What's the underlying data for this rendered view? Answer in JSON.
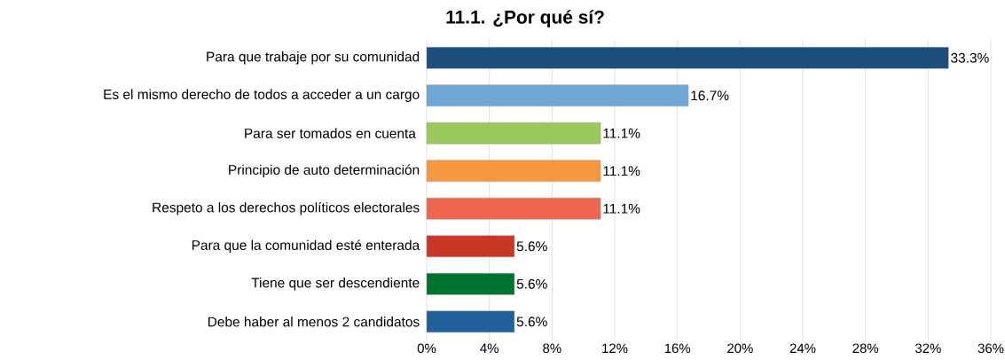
{
  "chart_data": {
    "type": "bar",
    "orientation": "horizontal",
    "title": "11.1. ¿Por qué sí?",
    "categories": [
      "Para que trabaje por su comunidad",
      "Es el mismo derecho de todos a acceder a un cargo",
      "Para ser tomados en cuenta ",
      "Principio de auto determinación",
      "Respeto a los derechos políticos electorales",
      "Para que la comunidad esté enterada",
      "Tiene que ser descendiente",
      "Debe haber al menos 2 candidatos"
    ],
    "values": [
      33.3,
      16.7,
      11.1,
      11.1,
      11.1,
      5.6,
      5.6,
      5.6
    ],
    "value_labels": [
      "33.3%",
      "16.7%",
      "11.1%",
      "11.1%",
      "11.1%",
      "5.6%",
      "5.6%",
      "5.6%"
    ],
    "colors": [
      "#1c4f7c",
      "#6fa8d6",
      "#9bc85a",
      "#f5973f",
      "#ef6650",
      "#cb3727",
      "#00742f",
      "#21609a"
    ],
    "xlim": [
      0,
      36
    ],
    "xticks": [
      {
        "value": 0,
        "label": "0%"
      },
      {
        "value": 4,
        "label": "4%"
      },
      {
        "value": 8,
        "label": "8%"
      },
      {
        "value": 12,
        "label": "12%"
      },
      {
        "value": 16,
        "label": "16%"
      },
      {
        "value": 20,
        "label": "20%"
      },
      {
        "value": 24,
        "label": "24%"
      },
      {
        "value": 28,
        "label": "28%"
      },
      {
        "value": 32,
        "label": "32%"
      },
      {
        "value": 36,
        "label": "36%"
      }
    ],
    "grid": "x"
  }
}
